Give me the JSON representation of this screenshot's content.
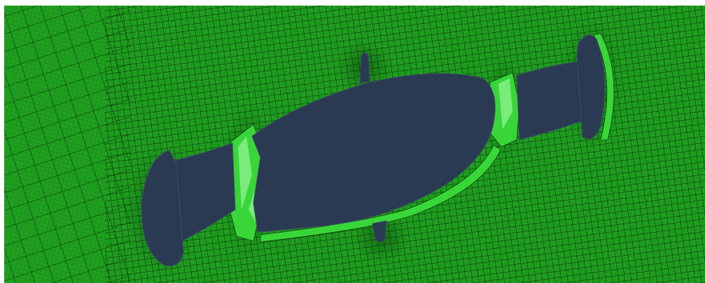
{
  "viewport": {
    "kind": "fe-mesh-render",
    "colors": {
      "background": "#ffffff",
      "mesh_fill": "#1fa11f",
      "mesh_lines": "#0a2a0a",
      "hole_fill": "#2b3a53",
      "hole_edge": "#3d4c66",
      "boundary_layer": "#39d639",
      "boundary_highlight": "#8cf08c"
    },
    "regions": [
      {
        "name": "mesh-domain"
      },
      {
        "name": "main-body-cutout"
      },
      {
        "name": "left-cap-cutout"
      },
      {
        "name": "right-cap-cutout"
      },
      {
        "name": "left-neck-transition"
      },
      {
        "name": "right-neck-transition"
      },
      {
        "name": "top-fin-cutout"
      },
      {
        "name": "bottom-fin-cutout"
      }
    ]
  }
}
